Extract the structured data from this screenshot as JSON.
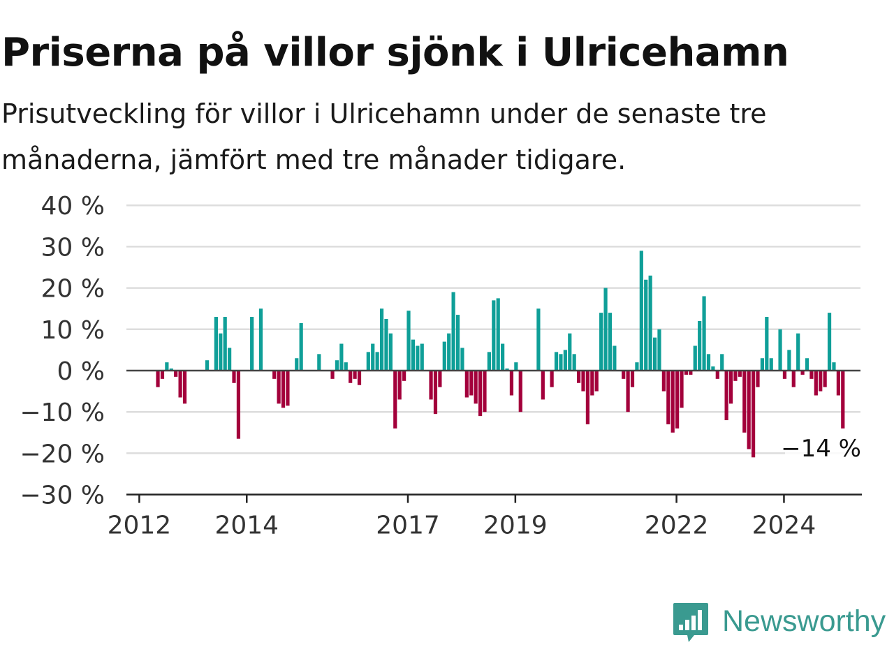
{
  "title": "Priserna på villor sjönk i Ulricehamn",
  "subtitle": "Prisutveckling för villor i Ulricehamn under de senaste tre månaderna, jämfört med tre månader tidigare.",
  "brand": {
    "name": "Newsworthy",
    "icon": "newsworthy-logo-icon",
    "color": "#3a9a90"
  },
  "chart_data": {
    "type": "bar",
    "title": "Priserna på villor sjönk i Ulricehamn",
    "xlabel": "",
    "ylabel": "",
    "ylim": [
      -30,
      40
    ],
    "yticks": [
      {
        "value": 40,
        "label": "40 %"
      },
      {
        "value": 30,
        "label": "30 %"
      },
      {
        "value": 20,
        "label": "20 %"
      },
      {
        "value": 10,
        "label": "10 %"
      },
      {
        "value": 0,
        "label": "0 %"
      },
      {
        "value": -10,
        "label": "−10 %"
      },
      {
        "value": -20,
        "label": "−20 %"
      },
      {
        "value": -30,
        "label": "−30 %"
      }
    ],
    "xticks": [
      {
        "month": "2012-01",
        "label": "2012"
      },
      {
        "month": "2014-01",
        "label": "2014"
      },
      {
        "month": "2017-01",
        "label": "2017"
      },
      {
        "month": "2019-01",
        "label": "2019"
      },
      {
        "month": "2022-01",
        "label": "2022"
      },
      {
        "month": "2024-01",
        "label": "2024"
      }
    ],
    "x_start": "2011-12",
    "grid": true,
    "colors": {
      "positive": "#0f9f98",
      "negative": "#a3003b",
      "zero_line": "#444444",
      "grid": "#dddddd"
    },
    "values": [
      null,
      null,
      null,
      null,
      null,
      -4,
      -2,
      2,
      0.5,
      -1.5,
      -6.5,
      -8,
      null,
      null,
      null,
      null,
      2.5,
      null,
      13,
      9,
      13,
      5.5,
      -3,
      -16.5,
      null,
      null,
      13,
      null,
      15,
      null,
      null,
      -2,
      -8,
      -9,
      -8.5,
      null,
      3,
      11.5,
      null,
      null,
      null,
      4,
      null,
      null,
      -2,
      2.5,
      6.5,
      2,
      -3,
      -2,
      -3.5,
      null,
      4.5,
      6.5,
      4.5,
      15,
      12.5,
      9,
      -14,
      -7,
      -2.5,
      14.5,
      7.5,
      6,
      6.5,
      null,
      -7,
      -10.5,
      -4,
      7,
      9,
      19,
      13.5,
      5.5,
      -6.5,
      -6,
      -8,
      -11,
      -10,
      4.5,
      17,
      17.5,
      6.5,
      0.5,
      -6,
      2,
      -10,
      null,
      null,
      null,
      15,
      -7,
      null,
      -4,
      4.5,
      4,
      5,
      9,
      4,
      -3,
      -5,
      -13,
      -6,
      -5,
      14,
      20,
      14,
      6,
      null,
      -2,
      -10,
      -4,
      2,
      29,
      22,
      23,
      8,
      10,
      -5,
      -13,
      -15,
      -14,
      -9,
      -1,
      -1,
      6,
      12,
      18,
      4,
      1,
      -2,
      4,
      -12,
      -8,
      -2.5,
      -1.5,
      -15,
      -19,
      -21,
      -4,
      3,
      13,
      3,
      null,
      10,
      -2,
      5,
      -4,
      9,
      -1,
      3,
      -2,
      -6,
      -5,
      -4,
      14,
      2,
      -6,
      -14
    ],
    "annotation": {
      "text": "−14 %"
    }
  }
}
